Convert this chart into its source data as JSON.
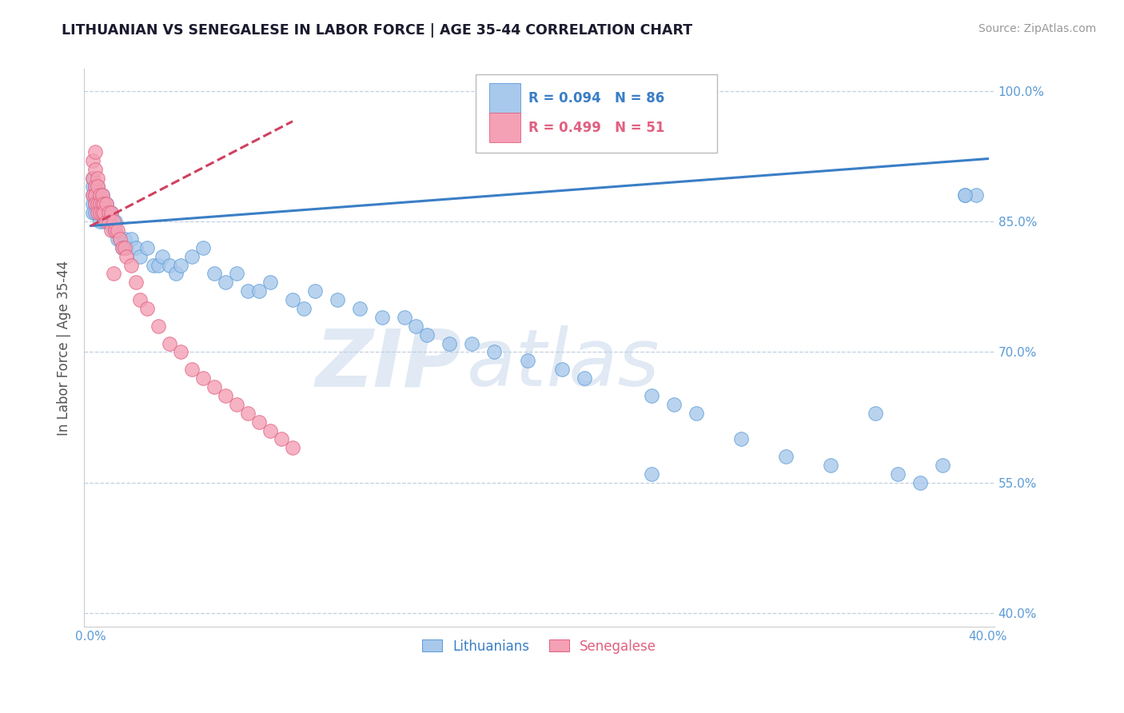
{
  "title": "LITHUANIAN VS SENEGALESE IN LABOR FORCE | AGE 35-44 CORRELATION CHART",
  "source": "Source: ZipAtlas.com",
  "ylabel": "In Labor Force | Age 35-44",
  "xlim": [
    -0.003,
    0.403
  ],
  "ylim": [
    0.385,
    1.025
  ],
  "xtick_vals": [
    0.0,
    0.4
  ],
  "xtick_labels": [
    "0.0%",
    "40.0%"
  ],
  "ytick_vals": [
    0.4,
    0.55,
    0.7,
    0.85,
    1.0
  ],
  "ytick_labels": [
    "40.0%",
    "55.0%",
    "70.0%",
    "85.0%",
    "100.0%"
  ],
  "blue_R": 0.094,
  "blue_N": 86,
  "pink_R": 0.499,
  "pink_N": 51,
  "blue_fill": "#A8C8EC",
  "blue_edge": "#5B9BD5",
  "pink_fill": "#F4A0B5",
  "pink_edge": "#E06080",
  "blue_line_color": "#3A7EC6",
  "pink_line_color": "#D04060",
  "legend_blue": "Lithuanians",
  "legend_pink": "Senegalese",
  "watermark_zip": "ZIP",
  "watermark_atlas": "atlas",
  "bg": "#FFFFFF",
  "grid_color": "#C0D0E0",
  "title_color": "#1A1A2E",
  "source_color": "#999999",
  "axis_label_color": "#555555",
  "tick_color": "#5B9BD5",
  "blue_x": [
    0.001,
    0.001,
    0.001,
    0.001,
    0.001,
    0.002,
    0.002,
    0.002,
    0.002,
    0.002,
    0.003,
    0.003,
    0.003,
    0.003,
    0.004,
    0.004,
    0.004,
    0.004,
    0.005,
    0.005,
    0.005,
    0.006,
    0.006,
    0.006,
    0.007,
    0.007,
    0.008,
    0.008,
    0.009,
    0.009,
    0.01,
    0.01,
    0.011,
    0.011,
    0.012,
    0.013,
    0.014,
    0.015,
    0.016,
    0.018,
    0.02,
    0.022,
    0.025,
    0.028,
    0.03,
    0.032,
    0.035,
    0.038,
    0.04,
    0.045,
    0.05,
    0.055,
    0.06,
    0.065,
    0.07,
    0.075,
    0.08,
    0.09,
    0.095,
    0.1,
    0.11,
    0.12,
    0.13,
    0.14,
    0.145,
    0.15,
    0.16,
    0.17,
    0.18,
    0.195,
    0.21,
    0.22,
    0.25,
    0.26,
    0.27,
    0.29,
    0.31,
    0.33,
    0.36,
    0.37,
    0.35,
    0.38,
    0.39,
    0.395,
    0.25,
    0.39
  ],
  "blue_y": [
    0.88,
    0.87,
    0.89,
    0.86,
    0.9,
    0.88,
    0.87,
    0.89,
    0.86,
    0.88,
    0.87,
    0.86,
    0.88,
    0.89,
    0.87,
    0.86,
    0.88,
    0.85,
    0.87,
    0.86,
    0.88,
    0.87,
    0.86,
    0.85,
    0.86,
    0.87,
    0.86,
    0.85,
    0.86,
    0.85,
    0.85,
    0.84,
    0.85,
    0.84,
    0.83,
    0.83,
    0.82,
    0.83,
    0.82,
    0.83,
    0.82,
    0.81,
    0.82,
    0.8,
    0.8,
    0.81,
    0.8,
    0.79,
    0.8,
    0.81,
    0.82,
    0.79,
    0.78,
    0.79,
    0.77,
    0.77,
    0.78,
    0.76,
    0.75,
    0.77,
    0.76,
    0.75,
    0.74,
    0.74,
    0.73,
    0.72,
    0.71,
    0.71,
    0.7,
    0.69,
    0.68,
    0.67,
    0.65,
    0.64,
    0.63,
    0.6,
    0.58,
    0.57,
    0.56,
    0.55,
    0.63,
    0.57,
    0.88,
    0.88,
    0.56,
    0.88
  ],
  "pink_x": [
    0.001,
    0.001,
    0.001,
    0.002,
    0.002,
    0.002,
    0.002,
    0.002,
    0.003,
    0.003,
    0.003,
    0.003,
    0.004,
    0.004,
    0.004,
    0.005,
    0.005,
    0.005,
    0.006,
    0.006,
    0.007,
    0.007,
    0.008,
    0.008,
    0.009,
    0.009,
    0.01,
    0.011,
    0.012,
    0.013,
    0.014,
    0.015,
    0.016,
    0.018,
    0.02,
    0.022,
    0.025,
    0.03,
    0.035,
    0.04,
    0.045,
    0.05,
    0.055,
    0.06,
    0.065,
    0.07,
    0.075,
    0.08,
    0.085,
    0.09,
    0.01
  ],
  "pink_y": [
    0.92,
    0.9,
    0.88,
    0.93,
    0.91,
    0.89,
    0.88,
    0.87,
    0.9,
    0.89,
    0.87,
    0.86,
    0.88,
    0.87,
    0.86,
    0.87,
    0.86,
    0.88,
    0.87,
    0.86,
    0.87,
    0.85,
    0.86,
    0.85,
    0.86,
    0.84,
    0.85,
    0.84,
    0.84,
    0.83,
    0.82,
    0.82,
    0.81,
    0.8,
    0.78,
    0.76,
    0.75,
    0.73,
    0.71,
    0.7,
    0.68,
    0.67,
    0.66,
    0.65,
    0.64,
    0.63,
    0.62,
    0.61,
    0.6,
    0.59,
    0.79
  ],
  "blue_trend_x0": 0.0,
  "blue_trend_x1": 0.4,
  "blue_trend_y0": 0.845,
  "blue_trend_y1": 0.922,
  "pink_trend_x0": 0.0,
  "pink_trend_x1": 0.09,
  "pink_trend_y0": 0.845,
  "pink_trend_y1": 0.965
}
